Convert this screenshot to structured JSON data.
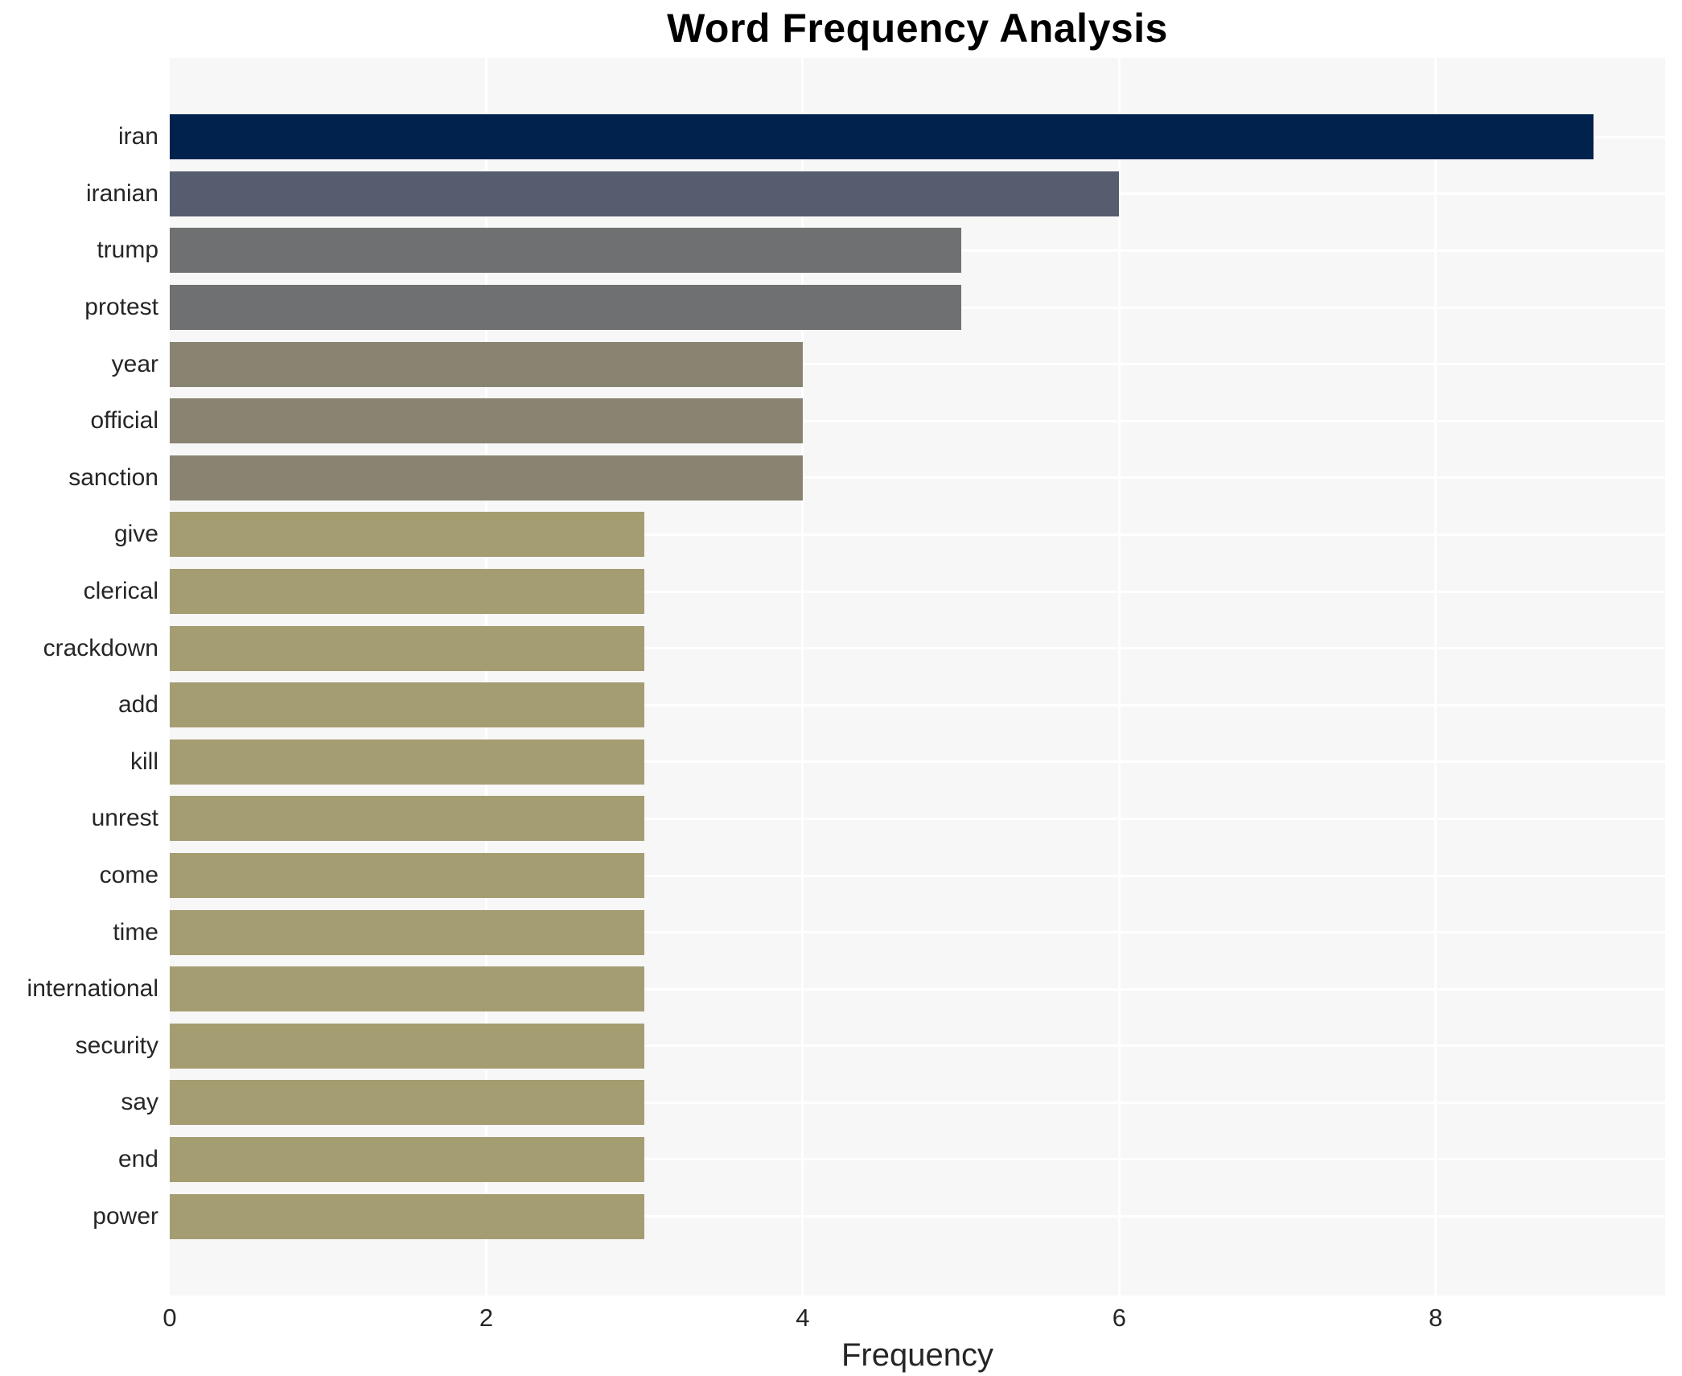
{
  "chart": {
    "title": "Word Frequency Analysis",
    "xlabel": "Frequency"
  },
  "chart_data": {
    "type": "bar",
    "orientation": "horizontal",
    "title": "Word Frequency Analysis",
    "xlabel": "Frequency",
    "ylabel": "",
    "grid": true,
    "legend": false,
    "xlim": [
      0,
      9.45
    ],
    "xticks": [
      0,
      2,
      4,
      6,
      8
    ],
    "categories": [
      "iran",
      "iranian",
      "trump",
      "protest",
      "year",
      "official",
      "sanction",
      "give",
      "clerical",
      "crackdown",
      "add",
      "kill",
      "unrest",
      "come",
      "time",
      "international",
      "security",
      "say",
      "end",
      "power"
    ],
    "values": [
      9,
      6,
      5,
      5,
      4,
      4,
      4,
      3,
      3,
      3,
      3,
      3,
      3,
      3,
      3,
      3,
      3,
      3,
      3,
      3
    ],
    "bar_colors": [
      "#01224d",
      "#565d6f",
      "#6f7072",
      "#6f7072",
      "#888471",
      "#888471",
      "#888471",
      "#a59d72",
      "#a59d72",
      "#a59d72",
      "#a59d72",
      "#a59d72",
      "#a59d72",
      "#a59d72",
      "#a59d72",
      "#a59d72",
      "#a59d72",
      "#a59d72",
      "#a59d72",
      "#a59d72"
    ],
    "colors": {
      "figure_background": "#ffffff",
      "plot_background": "#f7f7f7",
      "gridline": "#ffffff",
      "text": "#262626",
      "title_text": "#000000"
    }
  }
}
